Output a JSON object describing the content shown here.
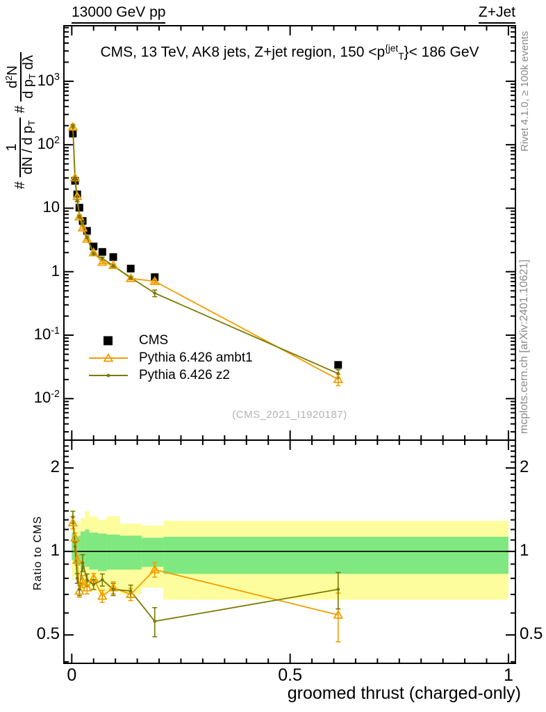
{
  "header": {
    "beam": "13000 GeV pp",
    "process": "Z+Jet"
  },
  "title": "CMS, 13 TeV, AK8 jets, Z+jet region, 150 <p^{{jet}_{T}}< 186 GeV",
  "watermark": "(CMS_2021_I1920187)",
  "credits": {
    "rivet": "Rivet 4.1.0, ≥ 100k events",
    "mcplots": "mcplots.cern.ch [arXiv:2401.10621]"
  },
  "y_axis_label_parts": {
    "hash1": "#",
    "frac1_num": "1",
    "frac1_den": "dN / d p_{T}",
    "hash2": "#",
    "frac2_num": "d^{2}N",
    "frac2_den": "d p_{T} dλ"
  },
  "ratio_axis_label": "Ratio to CMS",
  "x_axis_title": "groomed thrust (charged-only)",
  "legend": {
    "cms": "CMS",
    "ambt1": "Pythia 6.426 ambt1",
    "z2": "Pythia 6.426 z2"
  },
  "colors": {
    "cms": "#000000",
    "ambt1": "#f19e00",
    "z2": "#7a7a00",
    "band_yellow": "#fdfd9d",
    "band_green": "#80e880",
    "gray_text": "#8a8a8a"
  },
  "chart_data": {
    "type": "scatter",
    "title": "CMS, 13 TeV, AK8 jets, Z+jet region, 150 < pT(jet) < 186 GeV",
    "xlabel": "groomed thrust (charged-only)",
    "ylabel": "# 1/(dN/dpT) # d2N/(dpT dlambda)",
    "ratio_ylabel": "Ratio to CMS",
    "x_log": false,
    "y_log": true,
    "xlim": [
      -0.018,
      1.016
    ],
    "main_ylim": [
      0.00222,
      7500
    ],
    "ratio_ylim": [
      0.395,
      2.52
    ],
    "x": [
      0.0025,
      0.0075,
      0.0125,
      0.0175,
      0.025,
      0.035,
      0.05,
      0.07,
      0.095,
      0.135,
      0.19,
      0.61
    ],
    "series": [
      {
        "name": "CMS",
        "marker": "square",
        "values": [
          150,
          27,
          16.5,
          10.2,
          6.3,
          4.4,
          2.5,
          2.05,
          1.7,
          1.12,
          0.82,
          0.034
        ]
      },
      {
        "name": "Pythia 6.426 ambt1",
        "marker": "triangle-open",
        "ratio_to_cms": [
          1.27,
          1.12,
          0.93,
          0.72,
          0.78,
          0.74,
          0.8,
          0.69,
          0.74,
          0.7,
          0.86,
          0.59
        ],
        "rel_err": [
          0.05,
          0.04,
          0.04,
          0.05,
          0.05,
          0.05,
          0.04,
          0.05,
          0.05,
          0.05,
          0.06,
          0.2
        ]
      },
      {
        "name": "Pythia 6.426 z2",
        "marker": "dot",
        "ratio_to_cms": [
          1.33,
          1.04,
          0.8,
          0.73,
          0.91,
          0.79,
          0.76,
          0.79,
          0.73,
          0.72,
          0.56,
          0.73
        ],
        "rel_err": [
          0.05,
          0.04,
          0.04,
          0.05,
          0.07,
          0.05,
          0.04,
          0.05,
          0.05,
          0.05,
          0.12,
          0.15
        ]
      }
    ],
    "uncertainty_bands": {
      "bin_edges": [
        0,
        0.005,
        0.01,
        0.015,
        0.02,
        0.03,
        0.04,
        0.06,
        0.08,
        0.11,
        0.16,
        0.21,
        1.0
      ],
      "yellow": [
        [
          0.79,
          1.38
        ],
        [
          0.82,
          1.28
        ],
        [
          0.84,
          1.24
        ],
        [
          0.81,
          1.27
        ],
        [
          0.73,
          1.32
        ],
        [
          0.76,
          1.4
        ],
        [
          0.72,
          1.34
        ],
        [
          0.7,
          1.3
        ],
        [
          0.72,
          1.34
        ],
        [
          0.7,
          1.26
        ],
        [
          0.74,
          1.24
        ],
        [
          0.67,
          1.29
        ]
      ],
      "green": [
        [
          0.93,
          1.17
        ],
        [
          0.9,
          1.14
        ],
        [
          0.91,
          1.13
        ],
        [
          0.89,
          1.14
        ],
        [
          0.86,
          1.18
        ],
        [
          0.88,
          1.2
        ],
        [
          0.86,
          1.17
        ],
        [
          0.85,
          1.16
        ],
        [
          0.86,
          1.15
        ],
        [
          0.86,
          1.14
        ],
        [
          0.88,
          1.12
        ],
        [
          0.83,
          1.13
        ]
      ]
    },
    "ratio_reference_line": 1,
    "main_y_ticks": [
      {
        "v": 1000,
        "label": "10^{3}"
      },
      {
        "v": 100,
        "label": "10^{2}"
      },
      {
        "v": 10,
        "label": "10"
      },
      {
        "v": 1,
        "label": "1"
      },
      {
        "v": 0.1,
        "label": "10^{-1}"
      },
      {
        "v": 0.01,
        "label": "10^{-2}"
      }
    ],
    "ratio_y_ticks": [
      {
        "v": 2,
        "label": "2"
      },
      {
        "v": 1,
        "label": "1"
      },
      {
        "v": 0.5,
        "label": "0.5"
      }
    ],
    "x_ticks": [
      {
        "v": 0,
        "label": "0"
      },
      {
        "v": 0.5,
        "label": "0.5"
      },
      {
        "v": 1,
        "label": "1"
      }
    ],
    "legend_position": "left-middle",
    "grid": false
  }
}
